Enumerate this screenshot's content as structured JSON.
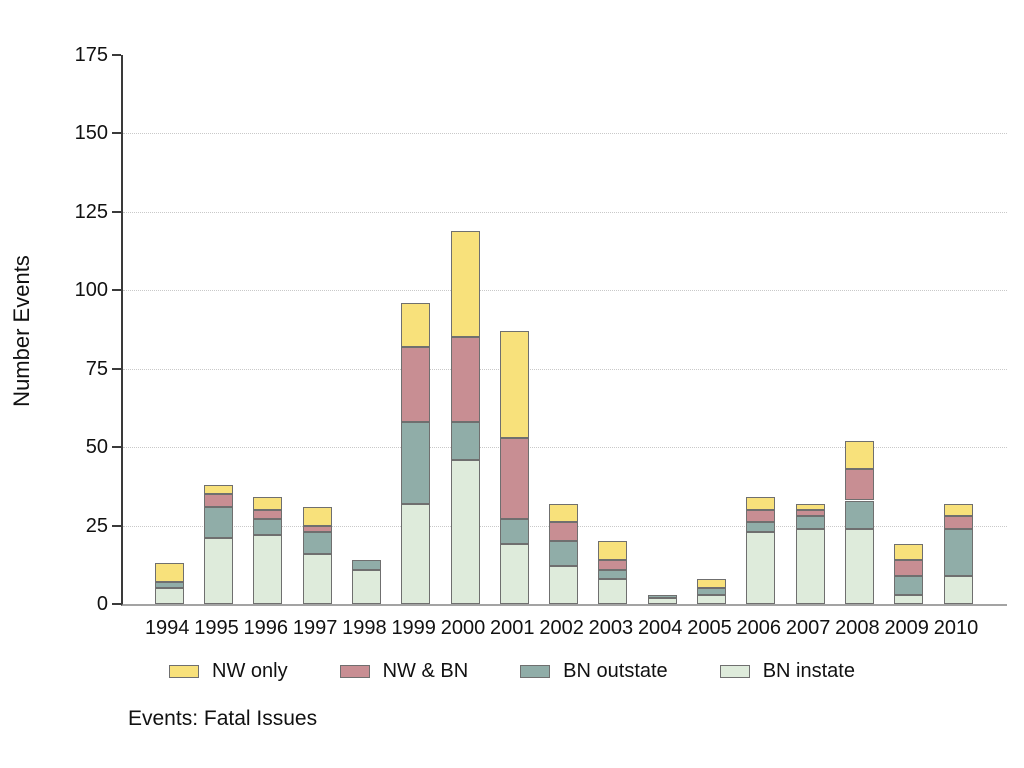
{
  "chart_data": {
    "type": "bar",
    "stacked": true,
    "title": "Events: Fatal Issues",
    "ylabel": "Number Events",
    "xlabel": "",
    "ylim": [
      0,
      175
    ],
    "yticks": [
      0,
      25,
      50,
      75,
      100,
      125,
      150,
      175
    ],
    "gridline_values": [
      25,
      50,
      75,
      100,
      125,
      150
    ],
    "grid": "dotted-horizontal",
    "legend_position": "bottom",
    "categories": [
      "1994",
      "1995",
      "1996",
      "1997",
      "1998",
      "1999",
      "2000",
      "2001",
      "2002",
      "2003",
      "2004",
      "2005",
      "2006",
      "2007",
      "2008",
      "2009",
      "2010"
    ],
    "series": [
      {
        "name": "BN instate",
        "color": "#DEEBDB",
        "values": [
          5,
          21,
          22,
          16,
          11,
          32,
          46,
          19,
          12,
          8,
          2,
          3,
          23,
          24,
          24,
          3,
          9
        ]
      },
      {
        "name": "BN outstate",
        "color": "#90ADA8",
        "values": [
          2,
          10,
          5,
          7,
          3,
          26,
          12,
          8,
          8,
          3,
          1,
          2,
          3,
          4,
          9,
          6,
          15
        ]
      },
      {
        "name": "NW & BN",
        "color": "#C88E93",
        "values": [
          0,
          4,
          3,
          2,
          0,
          24,
          27,
          26,
          6,
          3,
          0,
          0,
          4,
          2,
          10,
          5,
          4
        ]
      },
      {
        "name": "NW only",
        "color": "#F8E17B",
        "values": [
          6,
          3,
          4,
          6,
          0,
          14,
          34,
          34,
          6,
          6,
          0,
          3,
          4,
          2,
          9,
          5,
          4
        ]
      }
    ],
    "legend_items": [
      {
        "label": "NW only",
        "color": "#F8E17B"
      },
      {
        "label": "NW & BN",
        "color": "#C88E93"
      },
      {
        "label": "BN outstate",
        "color": "#90ADA8"
      },
      {
        "label": "BN instate",
        "color": "#DEEBDB"
      }
    ],
    "colors": {
      "bar_border": "#6F6F6F",
      "y_axis": "#3A3A3A",
      "x_axis": "#A3A3A3",
      "gridline": "#C9C9C9",
      "text": "#111111"
    }
  }
}
